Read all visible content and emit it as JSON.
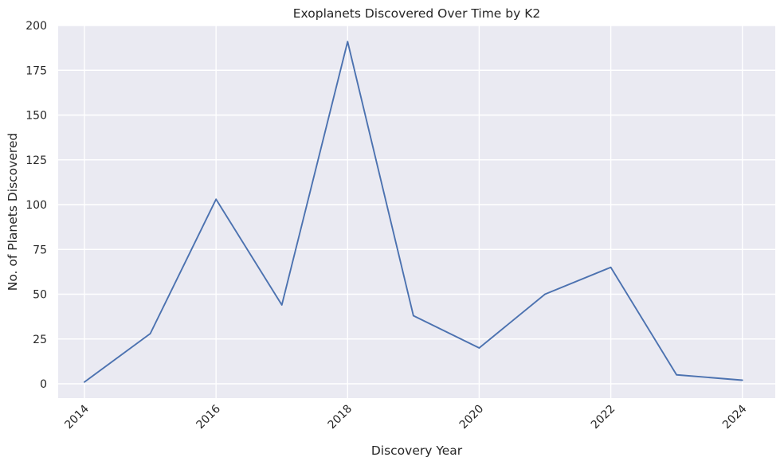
{
  "chart_data": {
    "type": "line",
    "title": "Exoplanets Discovered Over Time by K2",
    "xlabel": "Discovery Year",
    "ylabel": "No. of Planets Discovered",
    "x": [
      2014,
      2015,
      2016,
      2017,
      2018,
      2019,
      2020,
      2021,
      2022,
      2023,
      2024
    ],
    "series": [
      {
        "values": [
          1,
          28,
          103,
          44,
          191,
          38,
          20,
          50,
          65,
          5,
          2
        ]
      }
    ],
    "xlim": [
      2013.6,
      2024.5
    ],
    "ylim": [
      -8,
      200
    ],
    "xticks": [
      2014,
      2016,
      2018,
      2020,
      2022,
      2024
    ],
    "yticks": [
      0,
      25,
      50,
      75,
      100,
      125,
      150,
      175,
      200
    ],
    "grid": true,
    "line_color": "#4c72b0",
    "background_color": "#eaeaf2",
    "grid_color": "#ffffff"
  }
}
